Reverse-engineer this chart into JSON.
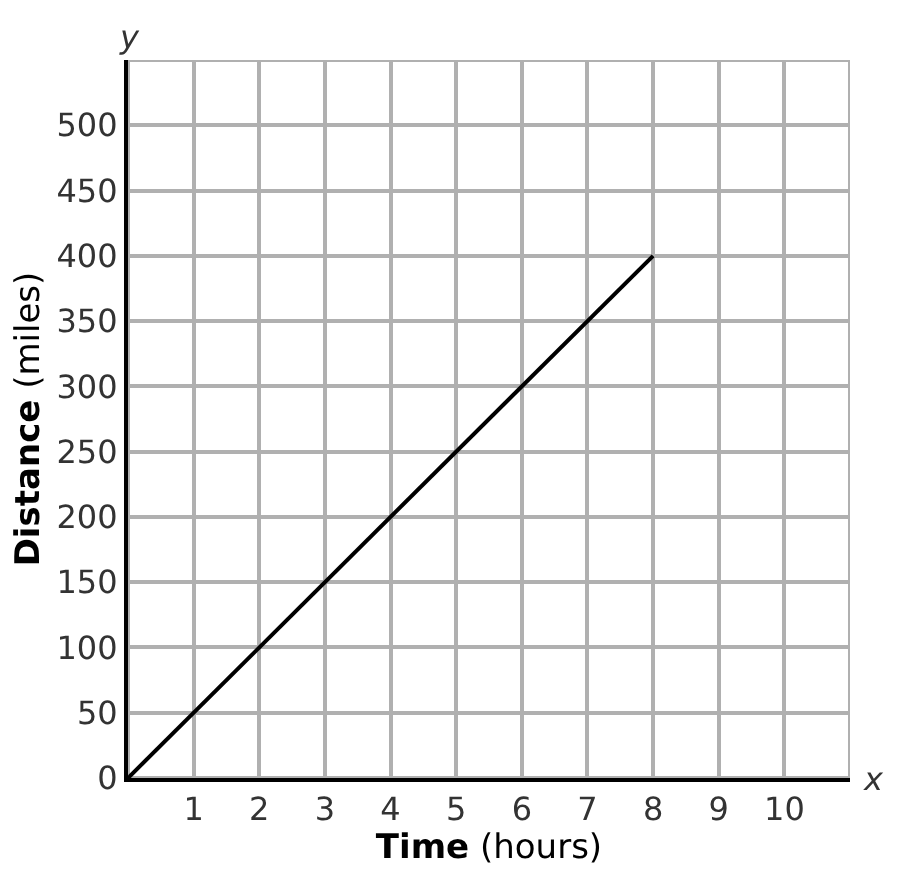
{
  "chart_data": {
    "type": "line",
    "x": [
      0,
      8
    ],
    "series": [
      {
        "color": "#000000",
        "values": [
          0,
          400
        ]
      }
    ],
    "xlabel": "Time (hours)",
    "ylabel": "Distance (miles)",
    "annotations": [
      "y",
      "x"
    ],
    "xlim": [
      0,
      11
    ],
    "ylim": [
      0,
      550
    ],
    "xticks": [
      {
        "value": 0,
        "label": null
      },
      1,
      2,
      3,
      4,
      5,
      6,
      7,
      8,
      9,
      10,
      {
        "value": 11,
        "label": null
      }
    ],
    "yticks": [
      0,
      50,
      100,
      150,
      200,
      250,
      300,
      350,
      400,
      450,
      500,
      {
        "value": 550,
        "label": null
      }
    ],
    "grid": true,
    "marker": "none",
    "line_style": "solid"
  }
}
